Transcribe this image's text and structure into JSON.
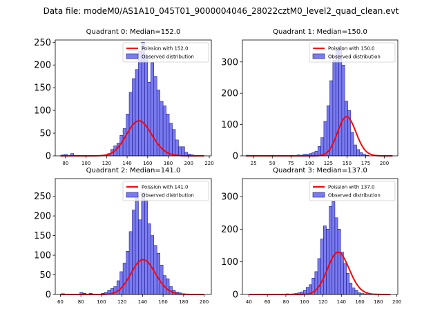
{
  "suptitle": "Data file: modeM0/AS1A10_045T01_9000004046_28022cztM0_level2_quad_clean.evt",
  "colors": {
    "bar_fill": "#7b7bf0",
    "bar_edge": "#1a1a8c",
    "curve": "#ff0000",
    "legend_edge": "#cccccc"
  },
  "chart_data": [
    {
      "type": "bar",
      "title": "Quadrant 0: Median=152.0",
      "xlim": [
        70,
        222
      ],
      "ylim": [
        0,
        255
      ],
      "xticks": [
        80,
        100,
        120,
        140,
        160,
        180,
        200,
        220
      ],
      "yticks": [
        0,
        50,
        100,
        150,
        200,
        250
      ],
      "legend": [
        "Poission with 152.0",
        "Observed distribution"
      ],
      "legend_location": "upper right",
      "poisson_mean": 152.0,
      "curve_scale": 2380,
      "curve_x": [
        75,
        215
      ],
      "bin_start": 76,
      "bin_width": 3,
      "values": [
        2,
        3,
        0,
        5,
        0,
        0,
        0,
        0,
        0,
        0,
        0,
        0,
        0,
        0,
        2,
        5,
        14,
        22,
        28,
        45,
        60,
        92,
        140,
        170,
        190,
        230,
        250,
        220,
        162,
        205,
        175,
        145,
        120,
        110,
        92,
        72,
        58,
        35,
        20,
        20,
        8,
        4,
        2,
        1,
        0,
        0,
        0
      ]
    },
    {
      "type": "bar",
      "title": "Quadrant 1: Median=150.0",
      "xlim": [
        10,
        218
      ],
      "ylim": [
        0,
        370
      ],
      "xticks": [
        25,
        50,
        75,
        100,
        125,
        150,
        175,
        200
      ],
      "yticks": [
        0,
        100,
        200,
        300
      ],
      "legend": [
        "Poission with 150.0",
        "Observed distribution"
      ],
      "legend_location": "upper right",
      "poisson_mean": 150.0,
      "curve_scale": 3840,
      "curve_x": [
        15,
        211
      ],
      "bin_start": 15,
      "bin_width": 4,
      "values": [
        2,
        1,
        1,
        0,
        0,
        1,
        0,
        0,
        0,
        0,
        0,
        0,
        0,
        0,
        0,
        1,
        0,
        3,
        2,
        5,
        5,
        7,
        10,
        15,
        30,
        58,
        110,
        160,
        240,
        305,
        340,
        350,
        290,
        175,
        145,
        75,
        35,
        20,
        10,
        5,
        2,
        0,
        0,
        0,
        0,
        0,
        0,
        0,
        0
      ]
    },
    {
      "type": "bar",
      "title": "Quadrant 2: Median=141.0",
      "xlim": [
        55,
        207
      ],
      "ylim": [
        0,
        295
      ],
      "xticks": [
        60,
        80,
        100,
        120,
        140,
        160,
        180,
        200
      ],
      "yticks": [
        0,
        50,
        100,
        150,
        200,
        250
      ],
      "legend": [
        "Poission with 141.0",
        "Observed distribution"
      ],
      "legend_location": "upper right",
      "poisson_mean": 141.0,
      "curve_scale": 2640,
      "curve_x": [
        60,
        200
      ],
      "bin_start": 61,
      "bin_width": 3,
      "values": [
        2,
        1,
        1,
        1,
        1,
        1,
        5,
        3,
        1,
        3,
        1,
        1,
        1,
        3,
        5,
        10,
        15,
        20,
        35,
        58,
        80,
        110,
        160,
        215,
        250,
        190,
        260,
        240,
        180,
        150,
        125,
        105,
        75,
        48,
        40,
        20,
        10,
        6,
        4,
        2,
        1,
        1,
        1,
        1,
        0,
        0,
        0
      ]
    },
    {
      "type": "bar",
      "title": "Quadrant 3: Median=137.0",
      "xlim": [
        33,
        201
      ],
      "ylim": [
        0,
        355
      ],
      "xticks": [
        40,
        60,
        80,
        100,
        120,
        140,
        160,
        180,
        200
      ],
      "yticks": [
        0,
        100,
        200,
        300
      ],
      "legend": [
        "Poission with 137.0",
        "Observed distribution"
      ],
      "legend_location": "upper right",
      "poisson_mean": 137.0,
      "curve_scale": 3800,
      "curve_x": [
        40,
        193
      ],
      "bin_start": 40,
      "bin_width": 3.1,
      "values": [
        1,
        1,
        0,
        0,
        0,
        0,
        0,
        0,
        0,
        0,
        0,
        0,
        1,
        2,
        1,
        2,
        3,
        5,
        8,
        12,
        22,
        30,
        50,
        70,
        110,
        170,
        210,
        200,
        270,
        285,
        235,
        200,
        130,
        95,
        65,
        35,
        20,
        12,
        5,
        3,
        2,
        1,
        1,
        1,
        0,
        0,
        0,
        0,
        0
      ]
    }
  ]
}
